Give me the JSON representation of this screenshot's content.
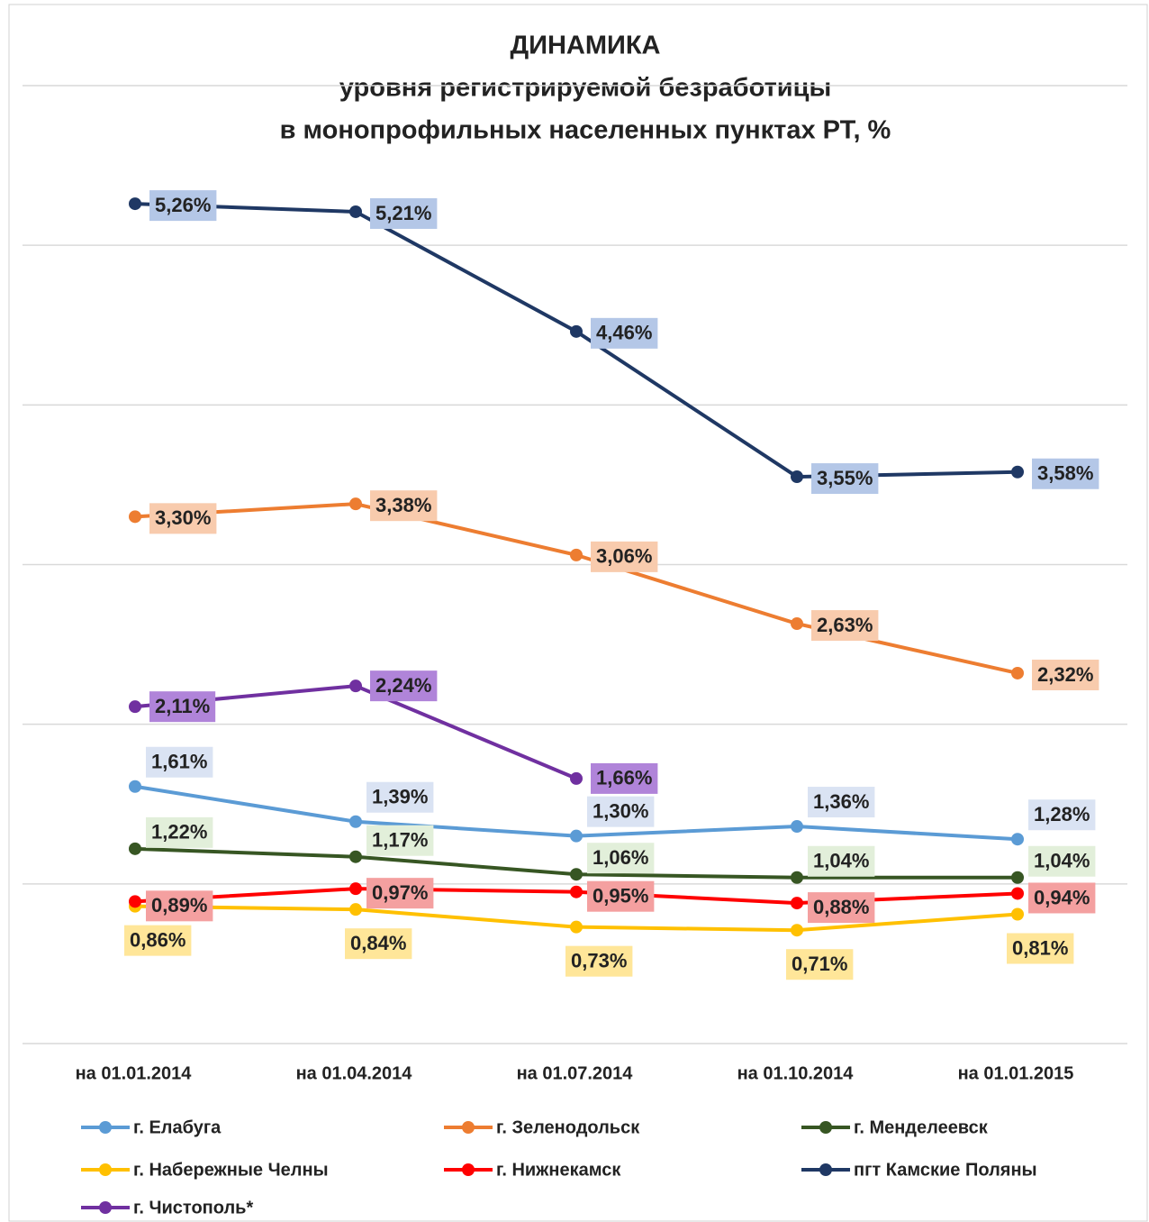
{
  "chart_data": {
    "type": "line",
    "title": "ДИНАМИКА",
    "subtitle": [
      "уровня регистрируемой безработицы",
      "в монопрофильных населенных пунктах РТ, %"
    ],
    "categories": [
      "на 01.01.2014",
      "на 01.04.2014",
      "на 01.07.2014",
      "на 01.10.2014",
      "на 01.01.2015"
    ],
    "ylim": [
      0,
      6
    ],
    "yticks": [
      0,
      1,
      2,
      3,
      4,
      5,
      6
    ],
    "grid": true,
    "series": [
      {
        "name": "г. Елабуга",
        "color": "#5b9bd5",
        "label_color": "#dae3f3",
        "values": [
          1.61,
          1.39,
          1.3,
          1.36,
          1.28
        ],
        "value_labels": [
          "1,61%",
          "1,39%",
          "1,30%",
          "1,36%",
          "1,28%"
        ]
      },
      {
        "name": "г. Зеленодольск",
        "color": "#ed7d31",
        "label_color": "#f8cbad",
        "values": [
          3.3,
          3.38,
          3.06,
          2.63,
          2.32
        ],
        "value_labels": [
          "3,30%",
          "3,38%",
          "3,06%",
          "2,63%",
          "2,32%"
        ]
      },
      {
        "name": "г. Менделеевск",
        "color": "#375623",
        "label_color": "#e2efda",
        "values": [
          1.22,
          1.17,
          1.06,
          1.04,
          1.04
        ],
        "value_labels": [
          "1,22%",
          "1,17%",
          "1,06%",
          "1,04%",
          "1,04%"
        ]
      },
      {
        "name": "г. Набережные Челны",
        "color": "#ffc000",
        "label_color": "#ffe699",
        "values": [
          0.86,
          0.84,
          0.73,
          0.71,
          0.81
        ],
        "value_labels": [
          "0,86%",
          "0,84%",
          "0,73%",
          "0,71%",
          "0,81%"
        ]
      },
      {
        "name": "г. Нижнекамск",
        "color": "#ff0000",
        "label_color": "#f4a0a0",
        "values": [
          0.89,
          0.97,
          0.95,
          0.88,
          0.94
        ],
        "value_labels": [
          "0,89%",
          "0,97%",
          "0,95%",
          "0,88%",
          "0,94%"
        ]
      },
      {
        "name": "пгт Камские Поляны",
        "color": "#1f3864",
        "label_color": "#b4c7e7",
        "values": [
          5.26,
          5.21,
          4.46,
          3.55,
          3.58
        ],
        "value_labels": [
          "5,26%",
          "5,21%",
          "4,46%",
          "3,55%",
          "3,58%"
        ]
      },
      {
        "name": "г. Чистополь*",
        "color": "#7030a0",
        "label_color": "#b084d9",
        "values": [
          2.11,
          2.24,
          1.66,
          null,
          null
        ],
        "value_labels": [
          "2,11%",
          "2,24%",
          "1,66%",
          null,
          null
        ]
      }
    ]
  }
}
